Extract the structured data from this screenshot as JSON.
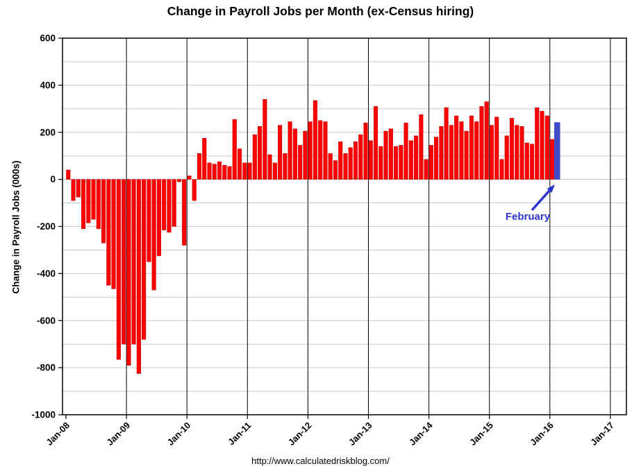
{
  "annotation": {
    "label": "February",
    "color": "#2B35CC"
  },
  "source_url_text": "http://www.calculatedriskblog.com/",
  "colors": {
    "bar": "#FE0000",
    "bar_edge": "#C00000",
    "highlight": "#3D4BC9",
    "grid_minor": "#C8C8C8",
    "grid_year": "#000000",
    "plot_border": "#000000",
    "tick_text": "#000000"
  },
  "chart_data": {
    "type": "bar",
    "title": "Change in Payroll Jobs per Month (ex-Census hiring)",
    "xlabel": "",
    "ylabel": "Change in Payroll Jobs (000s)",
    "ylim": [
      -1000,
      600
    ],
    "y_tick_interval": 200,
    "y_minor_gridline_interval": 100,
    "grid": "on",
    "legend": "none",
    "x_frequency": "monthly",
    "x_tick_labels": [
      "Jan-08",
      "Jan-09",
      "Jan-10",
      "Jan-11",
      "Jan-12",
      "Jan-13",
      "Jan-14",
      "Jan-15",
      "Jan-16",
      "Jan-17"
    ],
    "categories": [
      "Jan-08",
      "Feb-08",
      "Mar-08",
      "Apr-08",
      "May-08",
      "Jun-08",
      "Jul-08",
      "Aug-08",
      "Sep-08",
      "Oct-08",
      "Nov-08",
      "Dec-08",
      "Jan-09",
      "Feb-09",
      "Mar-09",
      "Apr-09",
      "May-09",
      "Jun-09",
      "Jul-09",
      "Aug-09",
      "Sep-09",
      "Oct-09",
      "Nov-09",
      "Dec-09",
      "Jan-10",
      "Feb-10",
      "Mar-10",
      "Apr-10",
      "May-10",
      "Jun-10",
      "Jul-10",
      "Aug-10",
      "Sep-10",
      "Oct-10",
      "Nov-10",
      "Dec-10",
      "Jan-11",
      "Feb-11",
      "Mar-11",
      "Apr-11",
      "May-11",
      "Jun-11",
      "Jul-11",
      "Aug-11",
      "Sep-11",
      "Oct-11",
      "Nov-11",
      "Dec-11",
      "Jan-12",
      "Feb-12",
      "Mar-12",
      "Apr-12",
      "May-12",
      "Jun-12",
      "Jul-12",
      "Aug-12",
      "Sep-12",
      "Oct-12",
      "Nov-12",
      "Dec-12",
      "Jan-13",
      "Feb-13",
      "Mar-13",
      "Apr-13",
      "May-13",
      "Jun-13",
      "Jul-13",
      "Aug-13",
      "Sep-13",
      "Oct-13",
      "Nov-13",
      "Dec-13",
      "Jan-14",
      "Feb-14",
      "Mar-14",
      "Apr-14",
      "May-14",
      "Jun-14",
      "Jul-14",
      "Aug-14",
      "Sep-14",
      "Oct-14",
      "Nov-14",
      "Dec-14",
      "Jan-15",
      "Feb-15",
      "Mar-15",
      "Apr-15",
      "May-15",
      "Jun-15",
      "Jul-15",
      "Aug-15",
      "Sep-15",
      "Oct-15",
      "Nov-15",
      "Dec-15",
      "Jan-16",
      "Feb-16"
    ],
    "series": [
      {
        "name": "Change in payroll jobs (000s), ex-Census",
        "values": [
          40,
          -90,
          -75,
          -210,
          -185,
          -170,
          -210,
          -270,
          -450,
          -465,
          -765,
          -700,
          -790,
          -700,
          -825,
          -680,
          -350,
          -470,
          -325,
          -215,
          -225,
          -200,
          -10,
          -280,
          15,
          -90,
          110,
          175,
          70,
          65,
          75,
          60,
          55,
          255,
          130,
          70,
          70,
          190,
          225,
          340,
          105,
          70,
          230,
          110,
          245,
          215,
          145,
          205,
          245,
          335,
          250,
          245,
          110,
          80,
          160,
          110,
          135,
          160,
          190,
          240,
          165,
          310,
          140,
          205,
          215,
          140,
          145,
          240,
          165,
          185,
          275,
          85,
          145,
          180,
          225,
          305,
          230,
          270,
          245,
          205,
          270,
          245,
          310,
          330,
          230,
          265,
          85,
          185,
          260,
          230,
          225,
          155,
          150,
          305,
          290,
          270,
          170,
          242
        ]
      }
    ],
    "highlight": {
      "index": 97,
      "category": "Feb-16",
      "label": "February"
    }
  }
}
